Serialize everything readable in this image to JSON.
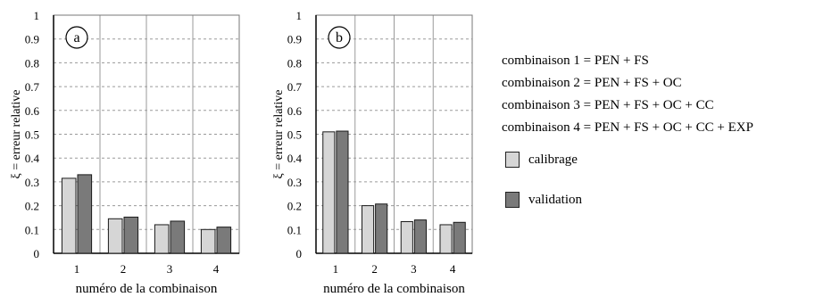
{
  "chart_data": [
    {
      "type": "bar",
      "panel_label": "a",
      "categories": [
        "1",
        "2",
        "3",
        "4"
      ],
      "series": [
        {
          "name": "calibrage",
          "values": [
            0.315,
            0.145,
            0.12,
            0.1
          ]
        },
        {
          "name": "validation",
          "values": [
            0.33,
            0.152,
            0.135,
            0.11
          ]
        }
      ],
      "xlabel": "numéro de la combinaison",
      "ylabel": "ξ = erreur relative",
      "ylim": [
        0,
        1
      ],
      "yticks": [
        "0",
        "0.1",
        "0.2",
        "0.3",
        "0.4",
        "0.5",
        "0.6",
        "0.7",
        "0.8",
        "0.9",
        "1"
      ],
      "grid": "dashed horizontal, solid vertical separators"
    },
    {
      "type": "bar",
      "panel_label": "b",
      "categories": [
        "1",
        "2",
        "3",
        "4"
      ],
      "series": [
        {
          "name": "calibrage",
          "values": [
            0.51,
            0.2,
            0.133,
            0.12
          ]
        },
        {
          "name": "validation",
          "values": [
            0.513,
            0.207,
            0.14,
            0.13
          ]
        }
      ],
      "xlabel": "numéro de la combinaison",
      "ylabel": "ξ = erreur relative",
      "ylim": [
        0,
        1
      ],
      "yticks": [
        "0",
        "0.1",
        "0.2",
        "0.3",
        "0.4",
        "0.5",
        "0.6",
        "0.7",
        "0.8",
        "0.9",
        "1"
      ],
      "grid": "dashed horizontal, solid vertical separators"
    }
  ],
  "legend": {
    "combinations": [
      "combinaison 1 = PEN + FS",
      "combinaison 2 = PEN + FS + OC",
      "combinaison 3 = PEN + FS + OC + CC",
      "combinaison 4 = PEN + FS + OC + CC + EXP"
    ],
    "series": [
      {
        "label": "calibrage",
        "color": "#d6d6d6"
      },
      {
        "label": "validation",
        "color": "#7a7a7a"
      }
    ]
  },
  "colors": {
    "calibrage": "#d6d6d6",
    "validation": "#7a7a7a",
    "axis": "#000000",
    "grid": "#9a9a9a"
  }
}
